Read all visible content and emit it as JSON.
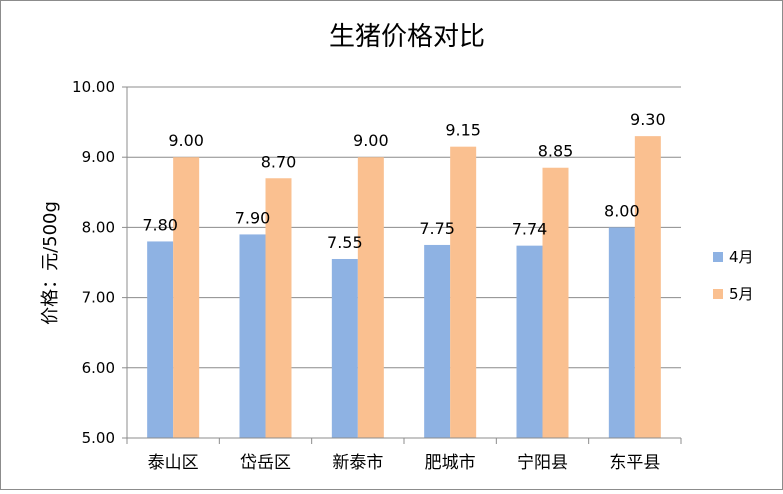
{
  "chart_data": {
    "type": "bar",
    "title": "生猪价格对比",
    "ylabel": "价格：元/500g",
    "xlabel": "",
    "ylim": [
      5.0,
      10.0
    ],
    "yticks": [
      "5.00",
      "6.00",
      "7.00",
      "8.00",
      "9.00",
      "10.00"
    ],
    "categories": [
      "泰山区",
      "岱岳区",
      "新泰市",
      "肥城市",
      "宁阳县",
      "东平县"
    ],
    "series": [
      {
        "name": "4月",
        "color": "#8eb2e3",
        "values": [
          7.8,
          7.9,
          7.55,
          7.75,
          7.74,
          8.0
        ],
        "labels": [
          "7.80",
          "7.90",
          "7.55",
          "7.75",
          "7.74",
          "8.00"
        ]
      },
      {
        "name": "5月",
        "color": "#fac090",
        "values": [
          9.0,
          8.7,
          9.0,
          9.15,
          8.85,
          9.3
        ],
        "labels": [
          "9.00",
          "8.70",
          "9.00",
          "9.15",
          "8.85",
          "9.30"
        ]
      }
    ],
    "grid": true,
    "legend_position": "right"
  }
}
